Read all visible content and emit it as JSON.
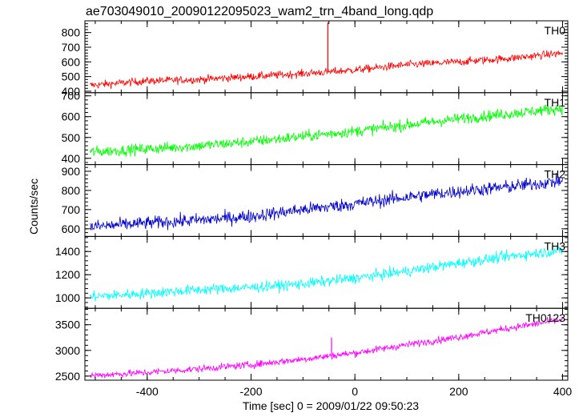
{
  "chart_data": {
    "type": "line",
    "title": "ae703049010_20090122095023_wam2_trn_4band_long.qdp",
    "xlabel": "Time [sec] 0 = 2009/01/22 09:50:23",
    "ylabel": "Counts/sec",
    "xlim": [
      -520,
      410
    ],
    "xticks": [
      -400,
      -200,
      0,
      200,
      400
    ],
    "shared_x": true,
    "grid": false,
    "panels": [
      {
        "name": "TH0",
        "color": "#ff0000",
        "ylim": [
          390,
          880
        ],
        "yticks": [
          400,
          500,
          600,
          700,
          800
        ],
        "x": [
          -510,
          -400,
          -300,
          -200,
          -100,
          0,
          100,
          200,
          300,
          400
        ],
        "y": [
          440,
          470,
          480,
          500,
          520,
          545,
          580,
          600,
          625,
          660
        ],
        "noise": 35,
        "spikes": [
          {
            "x": -52,
            "y": 870
          }
        ]
      },
      {
        "name": "TH1",
        "color": "#00ff00",
        "ylim": [
          370,
          715
        ],
        "yticks": [
          400,
          500,
          600,
          700
        ],
        "x": [
          -510,
          -400,
          -300,
          -200,
          -100,
          0,
          100,
          200,
          300,
          400
        ],
        "y": [
          430,
          445,
          460,
          480,
          505,
          530,
          560,
          590,
          615,
          640
        ],
        "noise": 35,
        "spikes": []
      },
      {
        "name": "TH2",
        "color": "#0000cc",
        "ylim": [
          560,
          935
        ],
        "yticks": [
          600,
          700,
          800,
          900
        ],
        "x": [
          -510,
          -400,
          -300,
          -200,
          -100,
          0,
          100,
          200,
          300,
          400
        ],
        "y": [
          610,
          630,
          645,
          665,
          700,
          730,
          765,
          795,
          820,
          850
        ],
        "noise": 45,
        "spikes": []
      },
      {
        "name": "TH3",
        "color": "#00ffff",
        "ylim": [
          910,
          1530
        ],
        "yticks": [
          1000,
          1200,
          1400
        ],
        "x": [
          -510,
          -400,
          -300,
          -200,
          -100,
          0,
          100,
          200,
          300,
          400
        ],
        "y": [
          1010,
          1040,
          1070,
          1090,
          1120,
          1170,
          1230,
          1300,
          1360,
          1410
        ],
        "noise": 60,
        "spikes": []
      },
      {
        "name": "TH0123",
        "color": "#ff00ff",
        "ylim": [
          2420,
          3820
        ],
        "yticks": [
          2500,
          3000,
          3500
        ],
        "x": [
          -510,
          -400,
          -300,
          -200,
          -100,
          0,
          100,
          200,
          300,
          400
        ],
        "y": [
          2510,
          2570,
          2640,
          2720,
          2830,
          2950,
          3110,
          3260,
          3440,
          3600
        ],
        "noise": 90,
        "spikes": [
          {
            "x": -45,
            "y": 3250
          }
        ]
      }
    ]
  }
}
